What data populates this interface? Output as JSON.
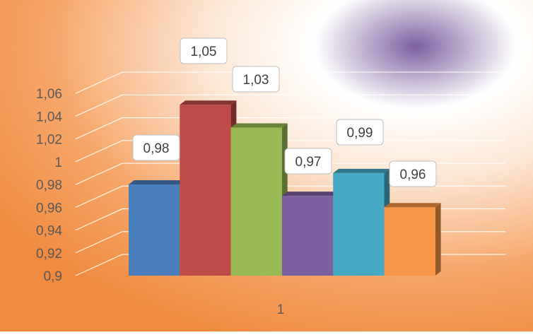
{
  "chart_data": {
    "type": "bar",
    "categories": [
      "1"
    ],
    "series": [
      {
        "values": [
          0.98
        ],
        "label": "0,98",
        "color": "#4A7EBB"
      },
      {
        "values": [
          1.05
        ],
        "label": "1,05",
        "color": "#BE4B48"
      },
      {
        "values": [
          1.03
        ],
        "label": "1,03",
        "color": "#98B954"
      },
      {
        "values": [
          0.97
        ],
        "label": "0,97",
        "color": "#7D60A0"
      },
      {
        "values": [
          0.99
        ],
        "label": "0,99",
        "color": "#46AAC5"
      },
      {
        "values": [
          0.96
        ],
        "label": "0,96",
        "color": "#F79646"
      }
    ],
    "y_ticks": [
      "0,9",
      "0,92",
      "0,94",
      "0,96",
      "0,98",
      "1",
      "1,02",
      "1,04",
      "1,06"
    ],
    "y_tick_values": [
      0.9,
      0.92,
      0.94,
      0.96,
      0.98,
      1.0,
      1.02,
      1.04,
      1.06
    ],
    "x_tick_labels": [
      "1"
    ],
    "ylim": [
      0.9,
      1.06
    ],
    "grid": true,
    "legend": "none",
    "style": "3d-clustered-column",
    "title": "",
    "xlabel": "",
    "ylabel": ""
  },
  "colors": {
    "background_warm": "#F2934A",
    "background_light": "#FFF8F0",
    "background_purple": "#7D60A0",
    "gridline": "#FFFFFF",
    "axis_text": "#595959",
    "label_box_fill": "#FFFFFF",
    "label_box_stroke": "#BFBFBF"
  }
}
